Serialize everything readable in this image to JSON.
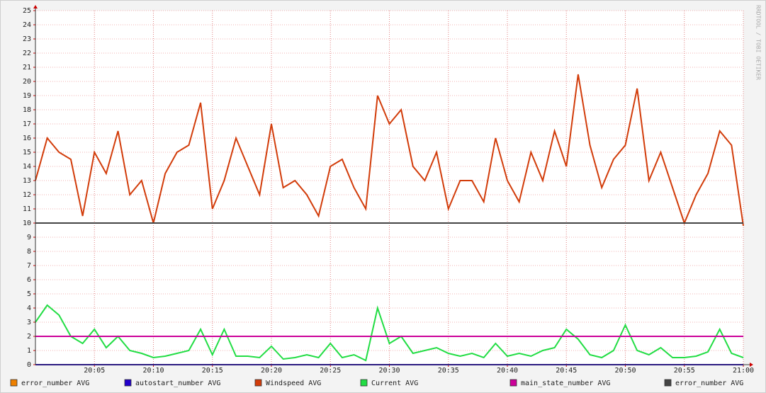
{
  "chart_data": {
    "type": "line",
    "watermark": "RRDTOOL / TOBI OETIKER",
    "x": [
      0,
      1,
      2,
      3,
      4,
      5,
      6,
      7,
      8,
      9,
      10,
      11,
      12,
      13,
      14,
      15,
      16,
      17,
      18,
      19,
      20,
      21,
      22,
      23,
      24,
      25,
      26,
      27,
      28,
      29,
      30,
      31,
      32,
      33,
      34,
      35,
      36,
      37,
      38,
      39,
      40,
      41,
      42,
      43,
      44,
      45,
      46,
      47,
      48,
      49,
      50,
      51,
      52,
      53,
      54,
      55,
      56,
      57,
      58,
      59,
      60
    ],
    "xlim": [
      0,
      60
    ],
    "xticks": [
      {
        "value": 5,
        "label": "20:05"
      },
      {
        "value": 10,
        "label": "20:10"
      },
      {
        "value": 15,
        "label": "20:15"
      },
      {
        "value": 20,
        "label": "20:20"
      },
      {
        "value": 25,
        "label": "20:25"
      },
      {
        "value": 30,
        "label": "20:30"
      },
      {
        "value": 35,
        "label": "20:35"
      },
      {
        "value": 40,
        "label": "20:40"
      },
      {
        "value": 45,
        "label": "20:45"
      },
      {
        "value": 50,
        "label": "20:50"
      },
      {
        "value": 55,
        "label": "20:55"
      },
      {
        "value": 60,
        "label": "21:00"
      }
    ],
    "ylim": [
      0,
      25
    ],
    "yticks": [
      0,
      1,
      2,
      3,
      4,
      5,
      6,
      7,
      8,
      9,
      10,
      11,
      12,
      13,
      14,
      15,
      16,
      17,
      18,
      19,
      20,
      21,
      22,
      23,
      24,
      25
    ],
    "grid": true,
    "legend": "bottom",
    "series": [
      {
        "name": "error_number AVG",
        "color": "#ee8000",
        "x": [
          0,
          60
        ],
        "values": [
          0,
          0
        ]
      },
      {
        "name": "autostart_number AVG",
        "color": "#2200cc",
        "x": [
          0,
          60
        ],
        "values": [
          0,
          0
        ]
      },
      {
        "name": "Windspeed AVG",
        "color": "#d23c0a",
        "values": [
          13,
          16,
          15,
          14.5,
          10.5,
          15,
          13.5,
          16.5,
          12,
          13,
          10,
          13.5,
          15,
          15.5,
          18.5,
          11,
          13,
          16,
          14,
          12,
          17,
          12.5,
          13,
          12,
          10.5,
          14,
          14.5,
          12.5,
          11,
          19,
          17,
          18,
          14,
          13,
          15,
          11,
          13,
          13,
          11.5,
          16,
          13,
          11.5,
          15,
          13,
          16.5,
          14,
          20.5,
          15.5,
          12.5,
          14.5,
          15.5,
          19.5,
          13,
          15,
          12.5,
          10,
          12,
          13.5,
          16.5,
          15.5,
          9.8
        ]
      },
      {
        "name": "Current AVG",
        "color": "#22dd44",
        "values": [
          3,
          4.2,
          3.5,
          2,
          1.5,
          2.5,
          1.2,
          2,
          1,
          0.8,
          0.5,
          0.6,
          0.8,
          1,
          2.5,
          0.7,
          2.5,
          0.6,
          0.6,
          0.5,
          1.3,
          0.4,
          0.5,
          0.7,
          0.5,
          1.5,
          0.5,
          0.7,
          0.3,
          4,
          1.5,
          2,
          0.8,
          1,
          1.2,
          0.8,
          0.6,
          0.8,
          0.5,
          1.5,
          0.6,
          0.8,
          0.6,
          1,
          1.2,
          2.5,
          1.8,
          0.7,
          0.5,
          1,
          2.8,
          1,
          0.7,
          1.2,
          0.5,
          0.5,
          0.6,
          0.9,
          2.5,
          0.8,
          0.5
        ]
      },
      {
        "name": "main_state_number AVG",
        "color": "#cc0099",
        "x": [
          0,
          60
        ],
        "values": [
          2,
          2
        ]
      },
      {
        "name": "error_number AVG",
        "color": "#444444",
        "x": [
          0,
          60
        ],
        "values": [
          10,
          10
        ]
      }
    ]
  }
}
